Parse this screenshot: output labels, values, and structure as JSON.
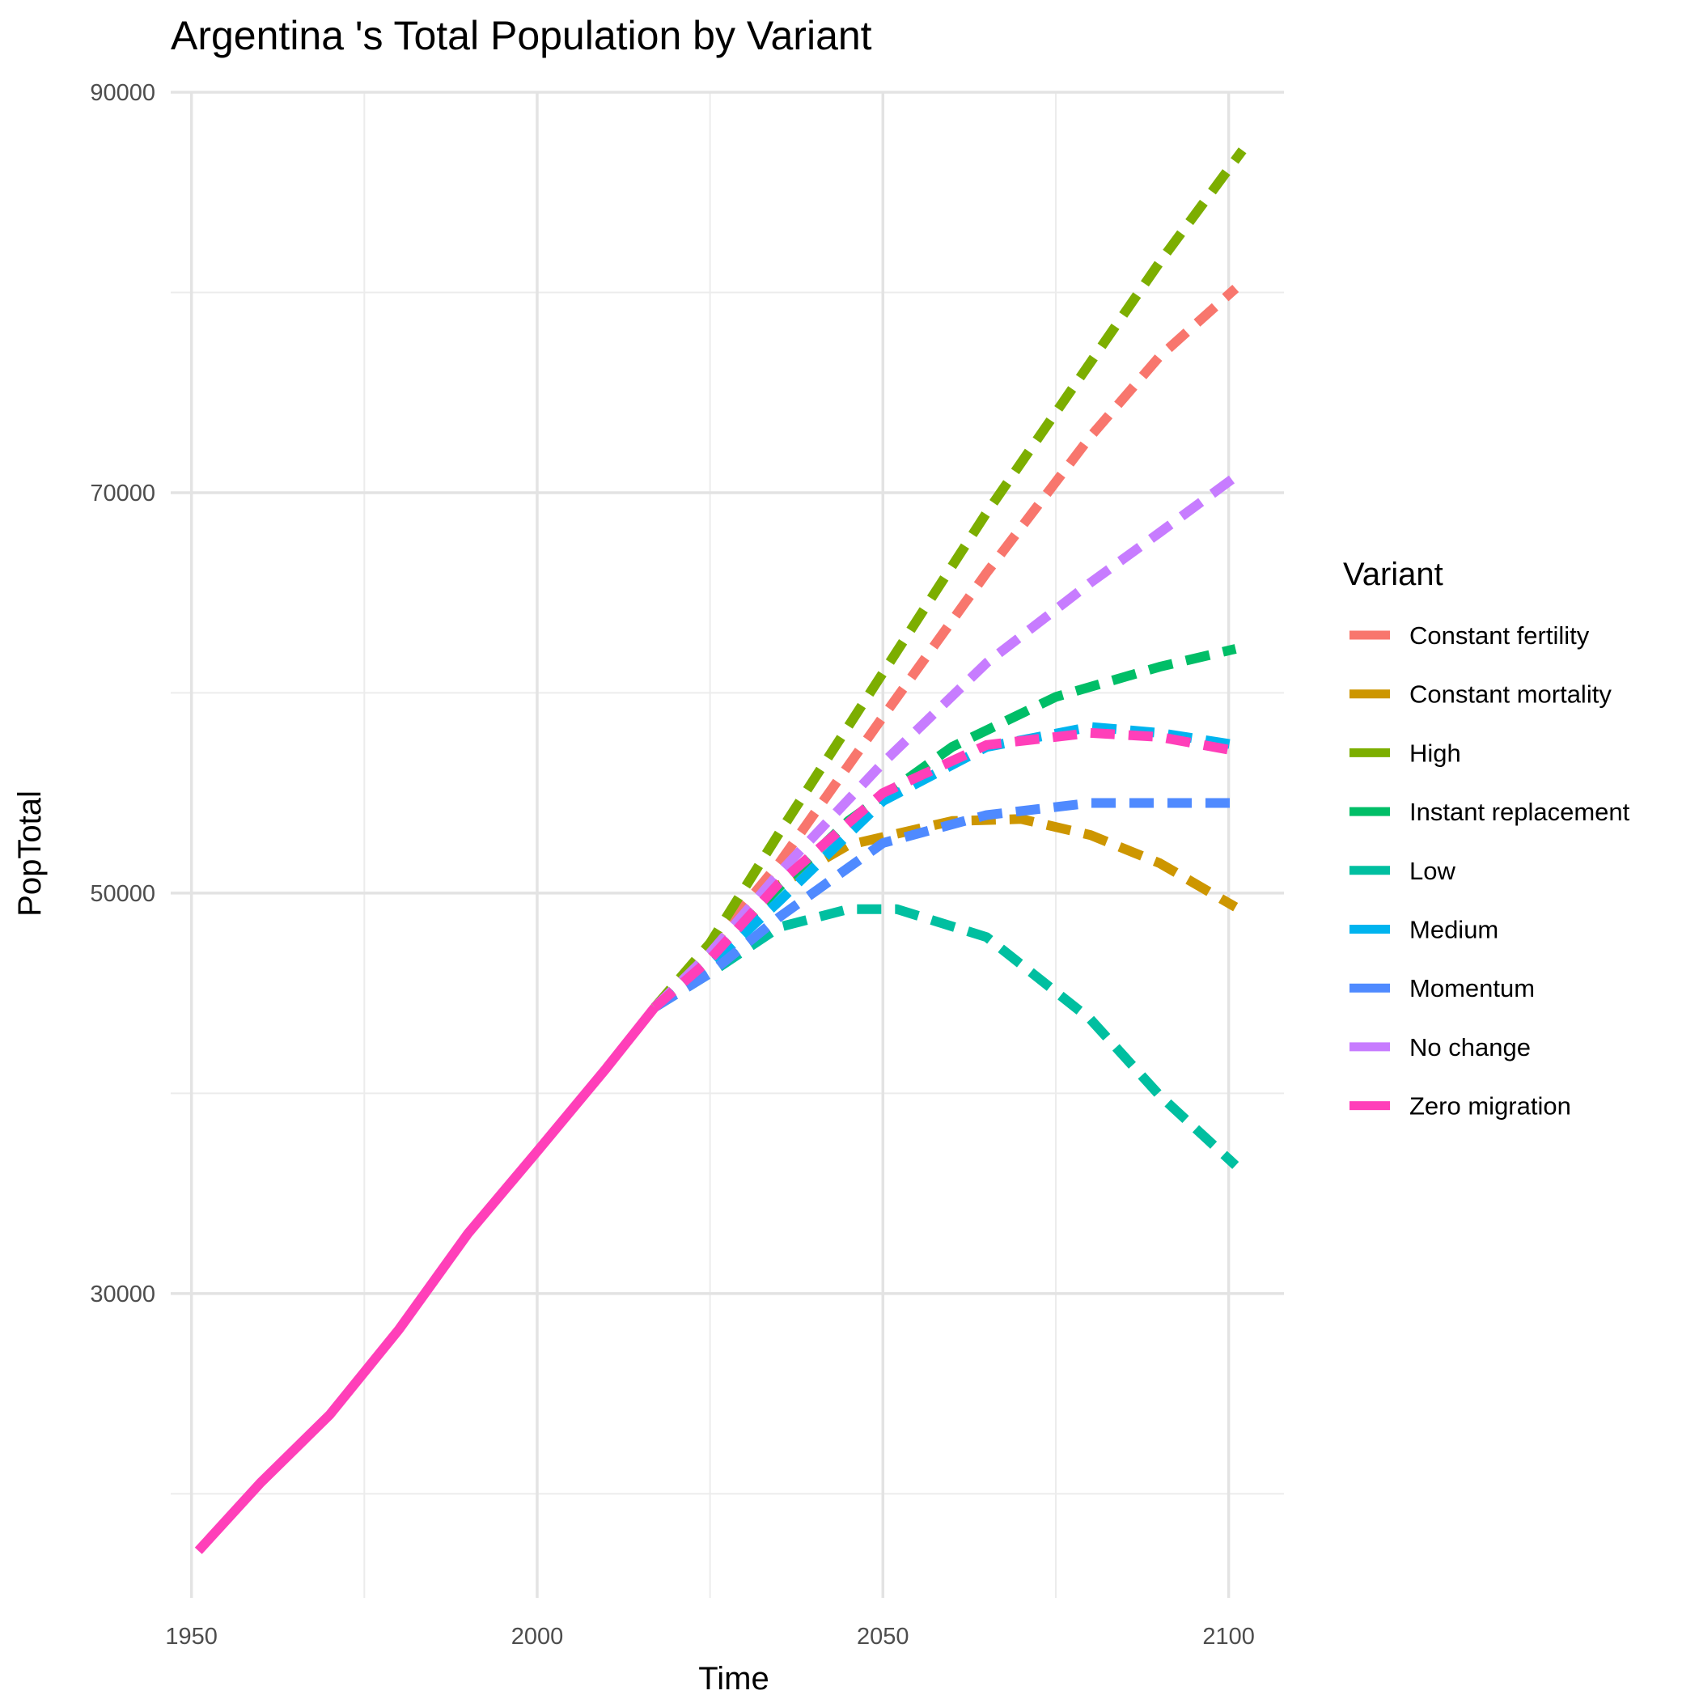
{
  "chart_data": {
    "type": "line",
    "title": "Argentina 's Total Population by Variant",
    "xlabel": "Time",
    "ylabel": "PopTotal",
    "xlim": [
      1947,
      2108
    ],
    "ylim": [
      14800,
      90000
    ],
    "x_ticks": [
      1950,
      2000,
      2050,
      2100
    ],
    "y_ticks": [
      30000,
      50000,
      70000,
      90000
    ],
    "grid": true,
    "legend": {
      "title": "Variant",
      "position": "right"
    },
    "historical": {
      "name": "Zero migration",
      "color": "#FF3FB9",
      "points": [
        [
          1951,
          17150
        ],
        [
          1960,
          20550
        ],
        [
          1970,
          23950
        ],
        [
          1980,
          28200
        ],
        [
          1990,
          33000
        ],
        [
          2000,
          37100
        ],
        [
          2010,
          41250
        ],
        [
          2017,
          44300
        ]
      ]
    },
    "series": [
      {
        "name": "Constant fertility",
        "color": "#F8766D",
        "points": [
          [
            2017,
            44300
          ],
          [
            2025,
            47300
          ],
          [
            2035,
            51500
          ],
          [
            2050,
            58800
          ],
          [
            2065,
            66000
          ],
          [
            2080,
            72800
          ],
          [
            2090,
            76800
          ],
          [
            2101,
            80200
          ]
        ]
      },
      {
        "name": "Constant mortality",
        "color": "#CD9600",
        "points": [
          [
            2017,
            44300
          ],
          [
            2025,
            46900
          ],
          [
            2035,
            50400
          ],
          [
            2045,
            52400
          ],
          [
            2060,
            53600
          ],
          [
            2070,
            53700
          ],
          [
            2080,
            52900
          ],
          [
            2090,
            51500
          ],
          [
            2101,
            49300
          ]
        ]
      },
      {
        "name": "High",
        "color": "#7CAE00",
        "points": [
          [
            2017,
            44300
          ],
          [
            2025,
            47500
          ],
          [
            2035,
            53000
          ],
          [
            2050,
            61000
          ],
          [
            2065,
            69000
          ],
          [
            2080,
            76500
          ],
          [
            2090,
            81500
          ],
          [
            2102,
            87100
          ]
        ]
      },
      {
        "name": "Instant replacement",
        "color": "#00BE67",
        "points": [
          [
            2017,
            44300
          ],
          [
            2025,
            46800
          ],
          [
            2035,
            50300
          ],
          [
            2045,
            53600
          ],
          [
            2060,
            57300
          ],
          [
            2075,
            59800
          ],
          [
            2090,
            61300
          ],
          [
            2101,
            62200
          ]
        ]
      },
      {
        "name": "Low",
        "color": "#00BFA0",
        "points": [
          [
            2017,
            44300
          ],
          [
            2025,
            46000
          ],
          [
            2035,
            48300
          ],
          [
            2045,
            49200
          ],
          [
            2052,
            49200
          ],
          [
            2065,
            47800
          ],
          [
            2080,
            43700
          ],
          [
            2090,
            39900
          ],
          [
            2101,
            36400
          ]
        ]
      },
      {
        "name": "Medium",
        "color": "#00B4EF",
        "points": [
          [
            2017,
            44300
          ],
          [
            2025,
            46400
          ],
          [
            2035,
            49600
          ],
          [
            2050,
            54600
          ],
          [
            2065,
            57300
          ],
          [
            2080,
            58300
          ],
          [
            2090,
            58000
          ],
          [
            2101,
            57400
          ]
        ]
      },
      {
        "name": "Momentum",
        "color": "#4F8AFF",
        "points": [
          [
            2017,
            44300
          ],
          [
            2025,
            46000
          ],
          [
            2035,
            48800
          ],
          [
            2050,
            52500
          ],
          [
            2065,
            53900
          ],
          [
            2080,
            54500
          ],
          [
            2090,
            54500
          ],
          [
            2101,
            54500
          ]
        ]
      },
      {
        "name": "No change",
        "color": "#C77CFF",
        "points": [
          [
            2017,
            44300
          ],
          [
            2025,
            47000
          ],
          [
            2035,
            51000
          ],
          [
            2050,
            56500
          ],
          [
            2065,
            61500
          ],
          [
            2080,
            65500
          ],
          [
            2090,
            68000
          ],
          [
            2101,
            70800
          ]
        ]
      },
      {
        "name": "Zero migration",
        "color": "#FF3FB9",
        "points": [
          [
            2017,
            44300
          ],
          [
            2025,
            46700
          ],
          [
            2035,
            50500
          ],
          [
            2050,
            55000
          ],
          [
            2065,
            57400
          ],
          [
            2080,
            58000
          ],
          [
            2090,
            57800
          ],
          [
            2101,
            57100
          ]
        ]
      }
    ]
  }
}
